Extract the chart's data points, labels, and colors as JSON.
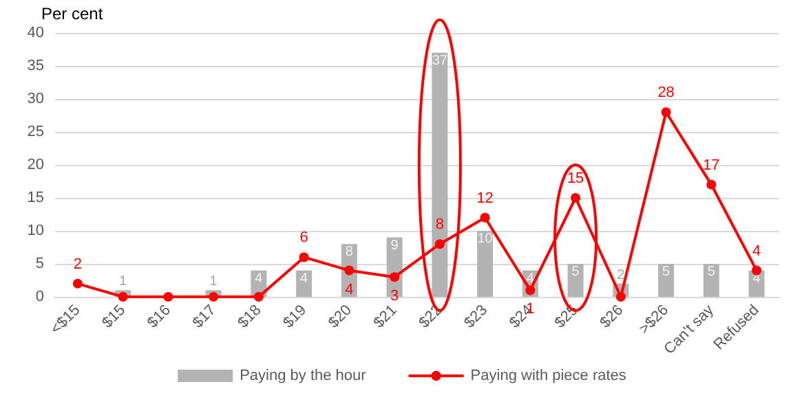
{
  "chart_data": {
    "type": "bar",
    "ylabel": "Per cent",
    "categories": [
      "<$15",
      "$15",
      "$16",
      "$17",
      "$18",
      "$19",
      "$20",
      "$21",
      "$22",
      "$23",
      "$24",
      "$25",
      "$26",
      ">$26",
      "Can't say",
      "Refused"
    ],
    "series": [
      {
        "name": "Paying by the hour",
        "color": "#b3b3b3",
        "values": [
          0,
          1,
          0,
          1,
          4,
          4,
          8,
          9,
          37,
          10,
          4,
          5,
          2,
          5,
          5,
          4
        ],
        "value_labels": [
          null,
          "1",
          null,
          "1",
          "4",
          "4",
          "8",
          "9",
          "37",
          "10",
          "4",
          "5",
          "2",
          "5",
          "5",
          "4"
        ]
      },
      {
        "name": "Paying with piece rates",
        "type": "line",
        "color": "#ff0000",
        "marker": "circle",
        "values": [
          2,
          0,
          0,
          0,
          0,
          6,
          4,
          3,
          8,
          12,
          1,
          15,
          0,
          28,
          17,
          4
        ],
        "value_labels": [
          "2",
          null,
          null,
          null,
          null,
          "6",
          "4",
          "3",
          "8",
          "12",
          "1",
          "15",
          null,
          "28",
          "17",
          "4"
        ]
      }
    ],
    "ylim": [
      0,
      40
    ],
    "yticks": [
      0,
      5,
      10,
      15,
      20,
      25,
      30,
      35,
      40
    ],
    "grid": "y",
    "legend": "bottom"
  }
}
